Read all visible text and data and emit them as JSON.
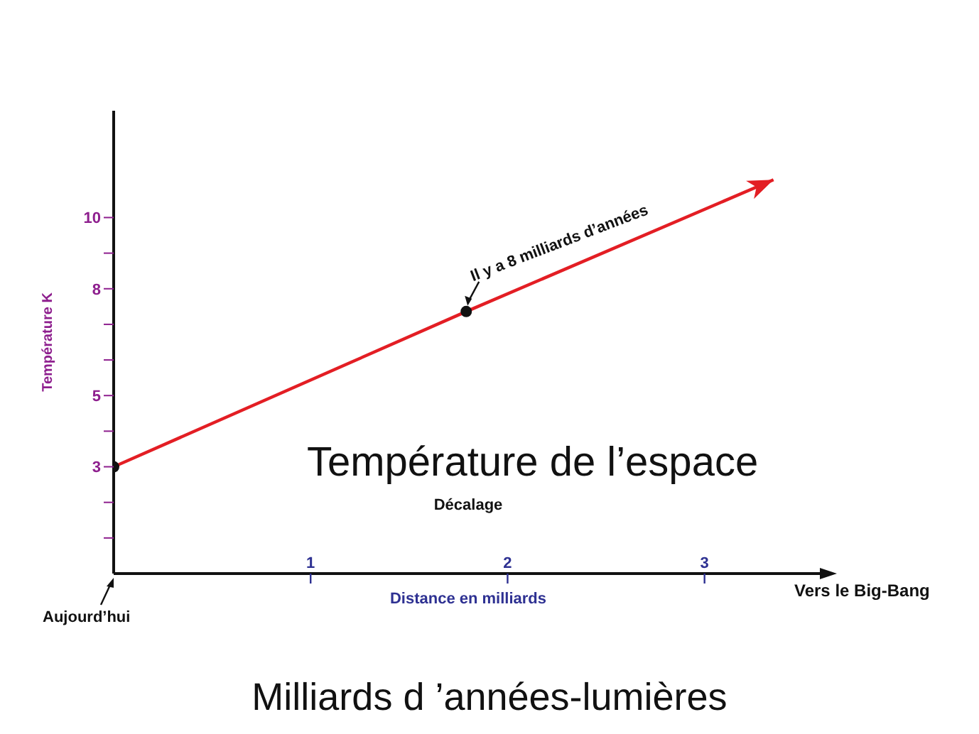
{
  "chart_data": {
    "type": "line",
    "title": "Température de l’espace",
    "xlabel": "Distance en milliards",
    "ylabel": "Température K",
    "x": [
      0,
      1.79,
      3.35
    ],
    "series": [
      {
        "color": "#e31e24",
        "values": [
          3,
          7.36,
          11.06
        ]
      }
    ],
    "xlim": [
      0,
      3.6
    ],
    "xticks": [
      1,
      2,
      3
    ],
    "ylim": [
      0,
      13
    ],
    "yticks": [
      {
        "value": 1,
        "label": null
      },
      {
        "value": 2,
        "label": null
      },
      3,
      {
        "value": 4,
        "label": null
      },
      5,
      {
        "value": 6,
        "label": null
      },
      {
        "value": 7,
        "label": null
      },
      8,
      {
        "value": 9,
        "label": null
      },
      10
    ],
    "marker": "circle",
    "line_style": "solid",
    "annotations": [
      "Décalage",
      "Vers le Big-Bang",
      "Aujourd’hui",
      {
        "text": "Il y a 8 milliards d’années",
        "x": 1.79,
        "y": 7.36
      },
      "Milliards d ’années-lumières"
    ]
  }
}
